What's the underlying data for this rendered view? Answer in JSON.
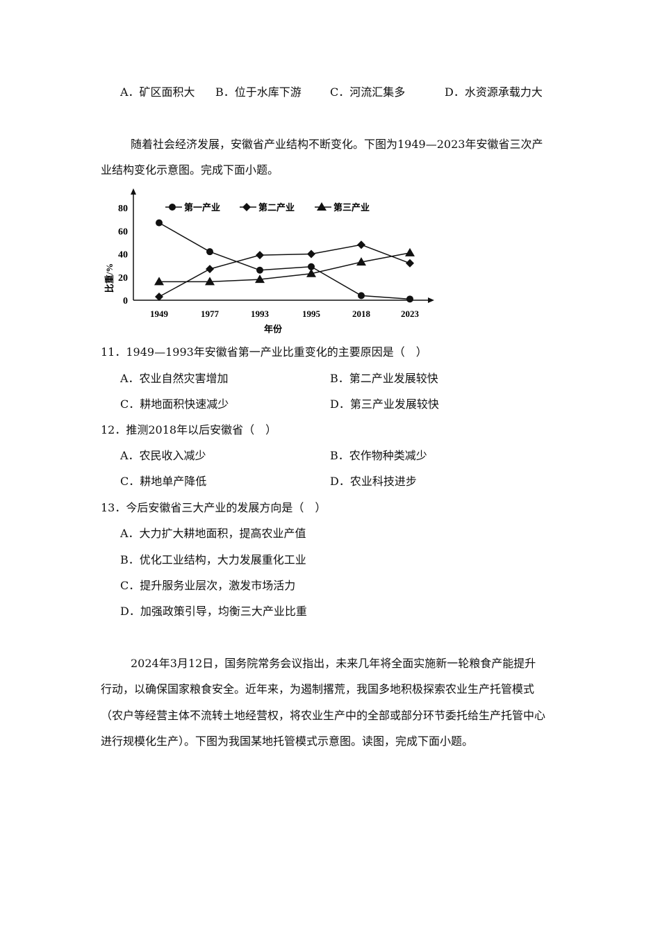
{
  "q10_options": [
    "A．矿区面积大",
    "B．位于水库下游",
    "C．河流汇集多",
    "D．水资源承载力大"
  ],
  "intro1": [
    "随着社会经济发展，安徽省产业结构不断变化。下图为1949—2023年安徽省三次产",
    "业结构变化示意图。完成下面小题。"
  ],
  "chart_data": {
    "type": "line",
    "categories": [
      "1949",
      "1977",
      "1993",
      "1995",
      "2018",
      "2023"
    ],
    "series": [
      {
        "name": "第一产业",
        "marker": "circle",
        "values": [
          67,
          42,
          26,
          29,
          4,
          1
        ]
      },
      {
        "name": "第二产业",
        "marker": "diamond",
        "values": [
          3,
          27,
          39,
          40,
          48,
          32
        ]
      },
      {
        "name": "第三产业",
        "marker": "triangle",
        "values": [
          16,
          16,
          18,
          23,
          33,
          41
        ]
      }
    ],
    "xlabel": "年份",
    "ylabel": "比重/%",
    "ylim": [
      0,
      90
    ],
    "yticks": [
      0,
      20,
      40,
      60,
      80
    ],
    "grid": false,
    "legend": "top",
    "color": "#111111"
  },
  "questions": [
    {
      "stem": "11．1949—1993年安徽省第一产业比重变化的主要原因是（　）",
      "options": [
        "A．农业自然灾害增加",
        "B．第二产业发展较快",
        "C．耕地面积快速减少",
        "D．第三产业发展较快"
      ]
    },
    {
      "stem": "12．推测2018年以后安徽省（　）",
      "options": [
        "A．农民收入减少",
        "B．农作物种类减少",
        "C．耕地单产降低",
        "D．农业科技进步"
      ]
    },
    {
      "stem": "13．今后安徽省三大产业的发展方向是（　）",
      "options": [
        "A．大力扩大耕地面积，提高农业产值",
        "B．优化工业结构，大力发展重化工业",
        "C．提升服务业层次，激发市场活力",
        "D．加强政策引导，均衡三大产业比重"
      ]
    }
  ],
  "intro2": [
    "2024年3月12日，国务院常务会议指出，未来几年将全面实施新一轮粮食产能提升",
    "行动，以确保国家粮食安全。近年来，为遏制撂荒，我国多地积极探索农业生产托管模式",
    "（农户等经营主体不流转土地经营权，将农业生产中的全部或部分环节委托给生产托管中心",
    "进行规模化生产）。下图为我国某地托管模式示意图。读图，完成下面小题。"
  ]
}
